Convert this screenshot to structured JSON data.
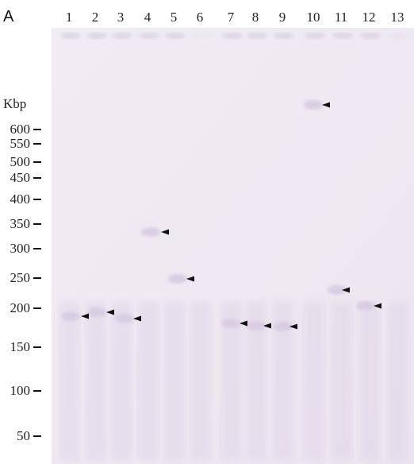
{
  "panel_label": "A",
  "lanes": [
    "1",
    "2",
    "3",
    "4",
    "5",
    "6",
    "7",
    "8",
    "9",
    "10",
    "11",
    "12",
    "13"
  ],
  "unit": "Kbp",
  "size_markers": [
    "600",
    "550",
    "500",
    "450",
    "400",
    "350",
    "300",
    "250",
    "200",
    "150",
    "100",
    "50"
  ]
}
